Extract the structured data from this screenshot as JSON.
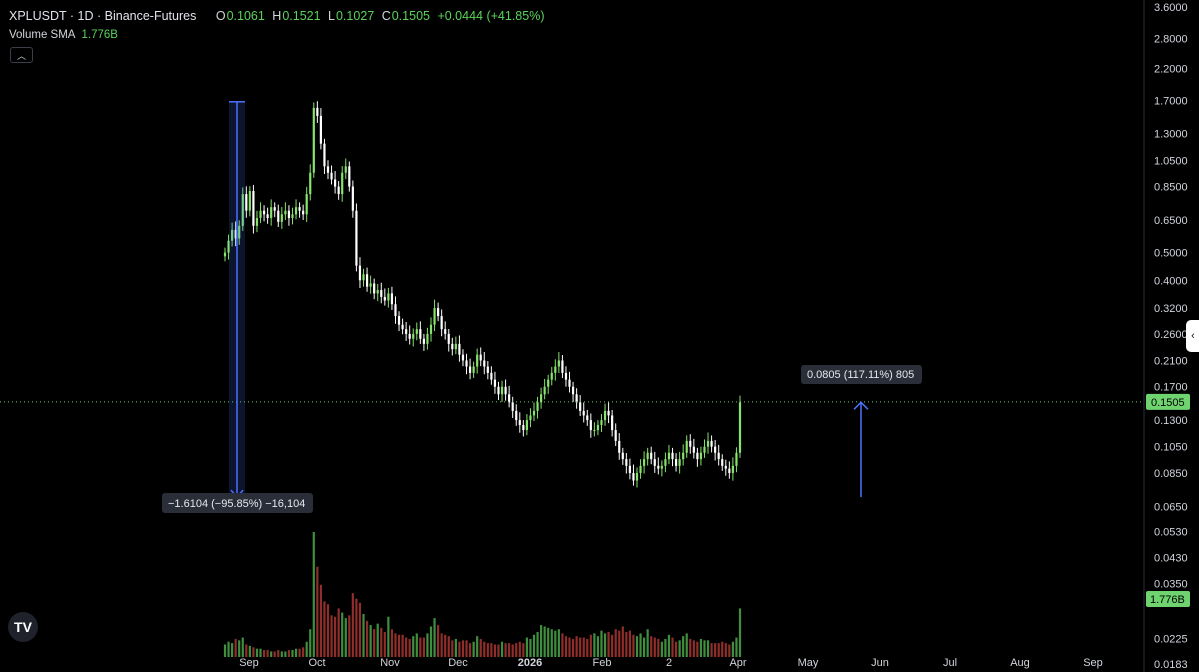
{
  "header": {
    "symbol": "XPLUSDT · 1D · Binance-Futures",
    "open_label": "O",
    "open": "0.1061",
    "high_label": "H",
    "high": "0.1521",
    "low_label": "L",
    "low": "0.1027",
    "close_label": "C",
    "close": "0.1505",
    "change": "+0.0444 (+41.85%)",
    "volume_label": "Volume SMA",
    "volume_value": "1.776B",
    "collapse_icon": "chevron-up-icon"
  },
  "colors": {
    "background": "#000000",
    "up": "#86e36b",
    "down": "#ffffff",
    "volume_up": "#3f8f3f",
    "volume_down": "#8f2e2a",
    "measure": "#4a72ff",
    "last_price": "#6fd36f"
  },
  "side_tab_icon": "chevron-left-icon",
  "logo": "TV",
  "chart_data": {
    "type": "candlestick",
    "y_scale": "log",
    "ylim": [
      0.0183,
      3.6
    ],
    "y_ticks": [
      "3.6000",
      "2.8000",
      "2.2000",
      "1.7000",
      "1.3000",
      "1.0500",
      "0.8500",
      "0.6500",
      "0.5000",
      "0.4000",
      "0.3200",
      "0.2600",
      "0.2100",
      "0.1700",
      "0.1300",
      "0.1050",
      "0.0850",
      "0.0650",
      "0.0530",
      "0.0430",
      "0.0350",
      "0.0225",
      "0.0183"
    ],
    "x_ticks": [
      "Sep",
      "Oct",
      "Nov",
      "Dec",
      "2026",
      "Feb",
      "2",
      "Apr",
      "May",
      "Jun",
      "Jul",
      "Aug",
      "Sep"
    ],
    "last_price": "0.1505",
    "volume_sma_label": "1.776B",
    "measures": [
      {
        "label": "−1.6104 (−95.85%) −16,104",
        "from_price": 1.68,
        "to_price": 0.07,
        "direction": "down"
      },
      {
        "label": "0.0805 (117.11%) 805",
        "from_price": 0.07,
        "to_price": 0.15,
        "direction": "up"
      }
    ],
    "series": [
      {
        "name": "close",
        "values": [
          0.5,
          0.55,
          0.6,
          0.56,
          0.62,
          0.8,
          0.7,
          0.82,
          0.62,
          0.66,
          0.7,
          0.68,
          0.66,
          0.72,
          0.7,
          0.64,
          0.68,
          0.7,
          0.66,
          0.68,
          0.72,
          0.7,
          0.68,
          0.8,
          0.95,
          1.6,
          1.5,
          1.2,
          1.0,
          0.95,
          0.9,
          0.85,
          0.8,
          0.95,
          1.0,
          0.85,
          0.7,
          0.45,
          0.4,
          0.42,
          0.38,
          0.39,
          0.36,
          0.37,
          0.35,
          0.34,
          0.36,
          0.33,
          0.3,
          0.28,
          0.27,
          0.26,
          0.25,
          0.26,
          0.27,
          0.25,
          0.24,
          0.26,
          0.28,
          0.32,
          0.3,
          0.27,
          0.26,
          0.24,
          0.23,
          0.24,
          0.22,
          0.21,
          0.2,
          0.19,
          0.2,
          0.22,
          0.21,
          0.2,
          0.19,
          0.18,
          0.17,
          0.16,
          0.17,
          0.16,
          0.15,
          0.14,
          0.13,
          0.125,
          0.12,
          0.13,
          0.135,
          0.14,
          0.15,
          0.16,
          0.17,
          0.18,
          0.19,
          0.2,
          0.21,
          0.19,
          0.18,
          0.17,
          0.16,
          0.15,
          0.14,
          0.135,
          0.13,
          0.12,
          0.12,
          0.125,
          0.13,
          0.14,
          0.135,
          0.12,
          0.11,
          0.1,
          0.095,
          0.09,
          0.085,
          0.08,
          0.085,
          0.09,
          0.095,
          0.1,
          0.095,
          0.09,
          0.088,
          0.09,
          0.095,
          0.1,
          0.095,
          0.09,
          0.095,
          0.1,
          0.11,
          0.105,
          0.1,
          0.095,
          0.1,
          0.105,
          0.11,
          0.105,
          0.1,
          0.095,
          0.09,
          0.088,
          0.085,
          0.09,
          0.1,
          0.15
        ],
        "volume": [
          0.9,
          1.1,
          1.0,
          1.3,
          1.2,
          1.4,
          0.9,
          0.8,
          0.7,
          0.6,
          0.6,
          0.5,
          0.5,
          0.4,
          0.4,
          0.5,
          0.4,
          0.4,
          0.5,
          0.5,
          0.6,
          0.6,
          0.7,
          1.1,
          2.0,
          9.0,
          6.5,
          5.2,
          4.0,
          3.8,
          3.0,
          2.9,
          3.5,
          3.2,
          2.8,
          3.0,
          4.6,
          4.2,
          3.9,
          3.1,
          2.6,
          2.3,
          2.0,
          2.4,
          2.1,
          1.8,
          2.9,
          2.0,
          1.7,
          1.6,
          1.6,
          1.4,
          1.3,
          1.5,
          1.7,
          1.4,
          1.4,
          1.7,
          2.2,
          2.8,
          2.3,
          1.7,
          1.6,
          1.5,
          1.2,
          1.3,
          1.1,
          1.2,
          1.2,
          1.0,
          1.1,
          1.5,
          1.3,
          1.1,
          1.0,
          1.0,
          0.9,
          0.9,
          1.1,
          1.0,
          1.0,
          0.9,
          1.0,
          1.1,
          1.0,
          1.4,
          1.3,
          1.6,
          1.8,
          2.3,
          2.2,
          2.1,
          2.0,
          1.9,
          2.0,
          1.7,
          1.5,
          1.4,
          1.3,
          1.5,
          1.4,
          1.4,
          1.3,
          1.6,
          1.7,
          1.5,
          1.9,
          1.7,
          1.8,
          1.6,
          2.0,
          1.9,
          2.2,
          1.8,
          1.9,
          1.6,
          1.5,
          1.7,
          1.4,
          2.0,
          1.5,
          1.4,
          1.3,
          1.1,
          1.3,
          1.6,
          1.4,
          1.1,
          1.2,
          1.5,
          1.7,
          1.3,
          1.2,
          1.1,
          1.3,
          1.2,
          1.2,
          1.0,
          1.0,
          1.0,
          1.1,
          1.0,
          0.9,
          1.1,
          1.4,
          3.5
        ]
      }
    ]
  }
}
